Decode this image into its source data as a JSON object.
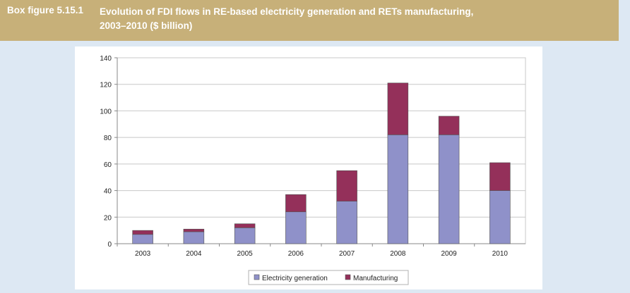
{
  "figure": {
    "label": "Box figure 5.15.1",
    "title_line1": "Evolution of FDI flows in RE-based electricity generation and RETs manufacturing,",
    "title_line2": "2003–2010 ($ billion)"
  },
  "colors": {
    "title_bar": "#c7b079",
    "electricity": "#8f91c9",
    "manufacturing": "#94305a",
    "background": "#dde8f3"
  },
  "chart_data": {
    "type": "bar",
    "stacked": true,
    "categories": [
      "2003",
      "2004",
      "2005",
      "2006",
      "2007",
      "2008",
      "2009",
      "2010"
    ],
    "series": [
      {
        "name": "Electricity generation",
        "values": [
          7,
          9,
          12,
          24,
          32,
          82,
          82,
          40
        ]
      },
      {
        "name": "Manufacturing",
        "values": [
          3,
          2,
          3,
          13,
          23,
          39,
          14,
          21
        ]
      }
    ],
    "ylim": [
      0,
      140
    ],
    "yticks": [
      "0",
      "20",
      "40",
      "60",
      "80",
      "100",
      "120",
      "140"
    ],
    "grid": true,
    "legend_position": "bottom"
  }
}
